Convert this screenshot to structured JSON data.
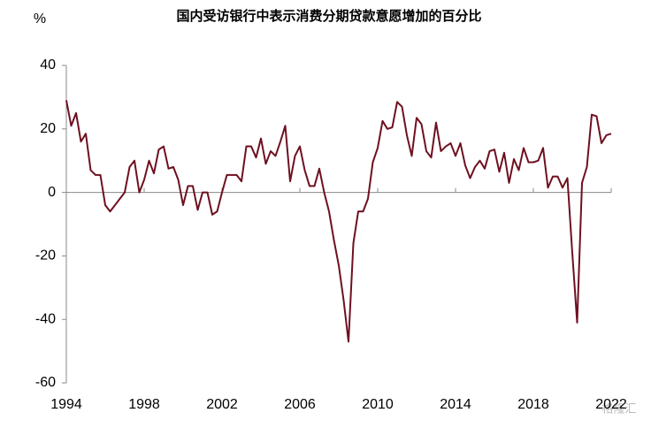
{
  "chart_data": {
    "type": "line",
    "title": "国内受访银行中表示消费分期贷款意愿增加的百分比",
    "y_unit": "%",
    "watermark": "格隆汇",
    "x": [
      1994,
      1994.25,
      1994.5,
      1994.75,
      1995,
      1995.25,
      1995.5,
      1995.75,
      1996,
      1996.25,
      1996.5,
      1996.75,
      1997,
      1997.25,
      1997.5,
      1997.75,
      1998,
      1998.25,
      1998.5,
      1998.75,
      1999,
      1999.25,
      1999.5,
      1999.75,
      2000,
      2000.25,
      2000.5,
      2000.75,
      2001,
      2001.25,
      2001.5,
      2001.75,
      2002,
      2002.25,
      2002.5,
      2002.75,
      2003,
      2003.25,
      2003.5,
      2003.75,
      2004,
      2004.25,
      2004.5,
      2004.75,
      2005,
      2005.25,
      2005.5,
      2005.75,
      2006,
      2006.25,
      2006.5,
      2006.75,
      2007,
      2007.25,
      2007.5,
      2007.75,
      2008,
      2008.25,
      2008.5,
      2008.75,
      2009,
      2009.25,
      2009.5,
      2009.75,
      2010,
      2010.25,
      2010.5,
      2010.75,
      2011,
      2011.25,
      2011.5,
      2011.75,
      2012,
      2012.25,
      2012.5,
      2012.75,
      2013,
      2013.25,
      2013.5,
      2013.75,
      2014,
      2014.25,
      2014.5,
      2014.75,
      2015,
      2015.25,
      2015.5,
      2015.75,
      2016,
      2016.25,
      2016.5,
      2016.75,
      2017,
      2017.25,
      2017.5,
      2017.75,
      2018,
      2018.25,
      2018.5,
      2018.75,
      2019,
      2019.25,
      2019.5,
      2019.75,
      2020,
      2020.25,
      2020.5,
      2020.75,
      2021,
      2021.25,
      2021.5,
      2021.75,
      2022
    ],
    "series": [
      {
        "name": "消费分期贷款意愿",
        "color": "#6e1020",
        "values": [
          29,
          21,
          25,
          16,
          18.5,
          7,
          5.5,
          5.5,
          -4,
          -6,
          -4,
          -2,
          0,
          8,
          10,
          0,
          4,
          10,
          6,
          13.5,
          14.5,
          7.5,
          8,
          4,
          -4,
          2,
          2,
          -5.5,
          0,
          0,
          -7,
          -6,
          0,
          5.5,
          5.5,
          5.5,
          3.5,
          14.5,
          14.5,
          11,
          17,
          9,
          13,
          11.5,
          16,
          21,
          3.5,
          11.5,
          14.5,
          7,
          2,
          2,
          7.5,
          0,
          -6,
          -15,
          -23,
          -34,
          -47,
          -16,
          -6,
          -6,
          -2,
          9.5,
          14,
          22.5,
          20,
          20.5,
          28.5,
          27,
          18,
          11.5,
          23.5,
          21.5,
          13,
          11,
          22,
          13,
          14.5,
          15.5,
          11.5,
          15.5,
          8.5,
          4.5,
          8,
          10,
          7.5,
          13,
          13.5,
          6.5,
          12.5,
          3,
          10.5,
          7,
          14,
          9.5,
          9.5,
          10,
          14,
          1.5,
          5,
          5,
          1.5,
          4.5,
          -19,
          -41,
          3,
          8,
          24.5,
          24,
          15.5,
          18,
          18.5
        ]
      }
    ],
    "xlim": [
      1994,
      2022
    ],
    "xticks": [
      1994,
      1998,
      2002,
      2006,
      2010,
      2014,
      2018,
      2022
    ],
    "ylim": [
      -60,
      40
    ],
    "yticks": [
      -60,
      -40,
      -20,
      0,
      20,
      40
    ],
    "grid": false
  }
}
